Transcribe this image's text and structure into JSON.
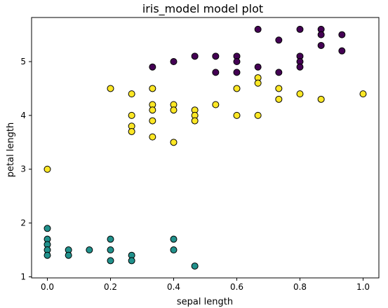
{
  "chart_data": {
    "type": "scatter",
    "title": "iris_model model plot",
    "xlabel": "sepal length",
    "ylabel": "petal length",
    "xlim": [
      -0.05,
      1.05
    ],
    "ylim": [
      0.98,
      5.82
    ],
    "xticks": [
      0.0,
      0.2,
      0.4,
      0.6,
      0.8,
      1.0
    ],
    "xtick_labels": [
      "0.0",
      "0.2",
      "0.4",
      "0.6",
      "0.8",
      "1.0"
    ],
    "yticks": [
      1,
      2,
      3,
      4,
      5
    ],
    "ytick_labels": [
      "1",
      "2",
      "3",
      "4",
      "5"
    ],
    "grid": false,
    "legend": "none",
    "series": [
      {
        "color": "#440154",
        "points": [
          [
            0.667,
            5.6
          ],
          [
            0.8,
            5.6
          ],
          [
            0.867,
            5.6
          ],
          [
            0.867,
            5.5
          ],
          [
            0.933,
            5.5
          ],
          [
            0.733,
            5.4
          ],
          [
            0.867,
            5.3
          ],
          [
            0.933,
            5.2
          ],
          [
            0.467,
            5.1
          ],
          [
            0.533,
            5.1
          ],
          [
            0.6,
            5.1
          ],
          [
            0.8,
            5.1
          ],
          [
            0.4,
            5.0
          ],
          [
            0.6,
            5.0
          ],
          [
            0.8,
            5.0
          ],
          [
            0.333,
            4.9
          ],
          [
            0.667,
            4.9
          ],
          [
            0.8,
            4.9
          ],
          [
            0.533,
            4.8
          ],
          [
            0.6,
            4.8
          ],
          [
            0.733,
            4.8
          ]
        ]
      },
      {
        "color": "#fde725",
        "points": [
          [
            0.2,
            4.5
          ],
          [
            0.333,
            4.5
          ],
          [
            0.6,
            4.5
          ],
          [
            0.733,
            4.5
          ],
          [
            0.267,
            4.4
          ],
          [
            0.8,
            4.4
          ],
          [
            1.0,
            4.4
          ],
          [
            0.733,
            4.3
          ],
          [
            0.867,
            4.3
          ],
          [
            0.333,
            4.2
          ],
          [
            0.4,
            4.2
          ],
          [
            0.533,
            4.2
          ],
          [
            0.333,
            4.1
          ],
          [
            0.4,
            4.1
          ],
          [
            0.467,
            4.1
          ],
          [
            0.267,
            4.0
          ],
          [
            0.467,
            4.0
          ],
          [
            0.6,
            4.0
          ],
          [
            0.667,
            4.0
          ],
          [
            0.333,
            3.9
          ],
          [
            0.467,
            3.9
          ],
          [
            0.267,
            3.8
          ],
          [
            0.267,
            3.7
          ],
          [
            0.333,
            3.6
          ],
          [
            0.4,
            3.5
          ],
          [
            0.667,
            4.7
          ],
          [
            0.667,
            4.6
          ],
          [
            0.0,
            3.0
          ]
        ]
      },
      {
        "color": "#21918c",
        "points": [
          [
            0.0,
            1.9
          ],
          [
            0.0,
            1.7
          ],
          [
            0.0,
            1.6
          ],
          [
            0.0,
            1.5
          ],
          [
            0.0,
            1.4
          ],
          [
            0.067,
            1.5
          ],
          [
            0.067,
            1.4
          ],
          [
            0.133,
            1.5
          ],
          [
            0.2,
            1.7
          ],
          [
            0.2,
            1.5
          ],
          [
            0.2,
            1.3
          ],
          [
            0.267,
            1.4
          ],
          [
            0.267,
            1.3
          ],
          [
            0.4,
            1.7
          ],
          [
            0.4,
            1.5
          ],
          [
            0.467,
            1.2
          ]
        ]
      }
    ]
  }
}
